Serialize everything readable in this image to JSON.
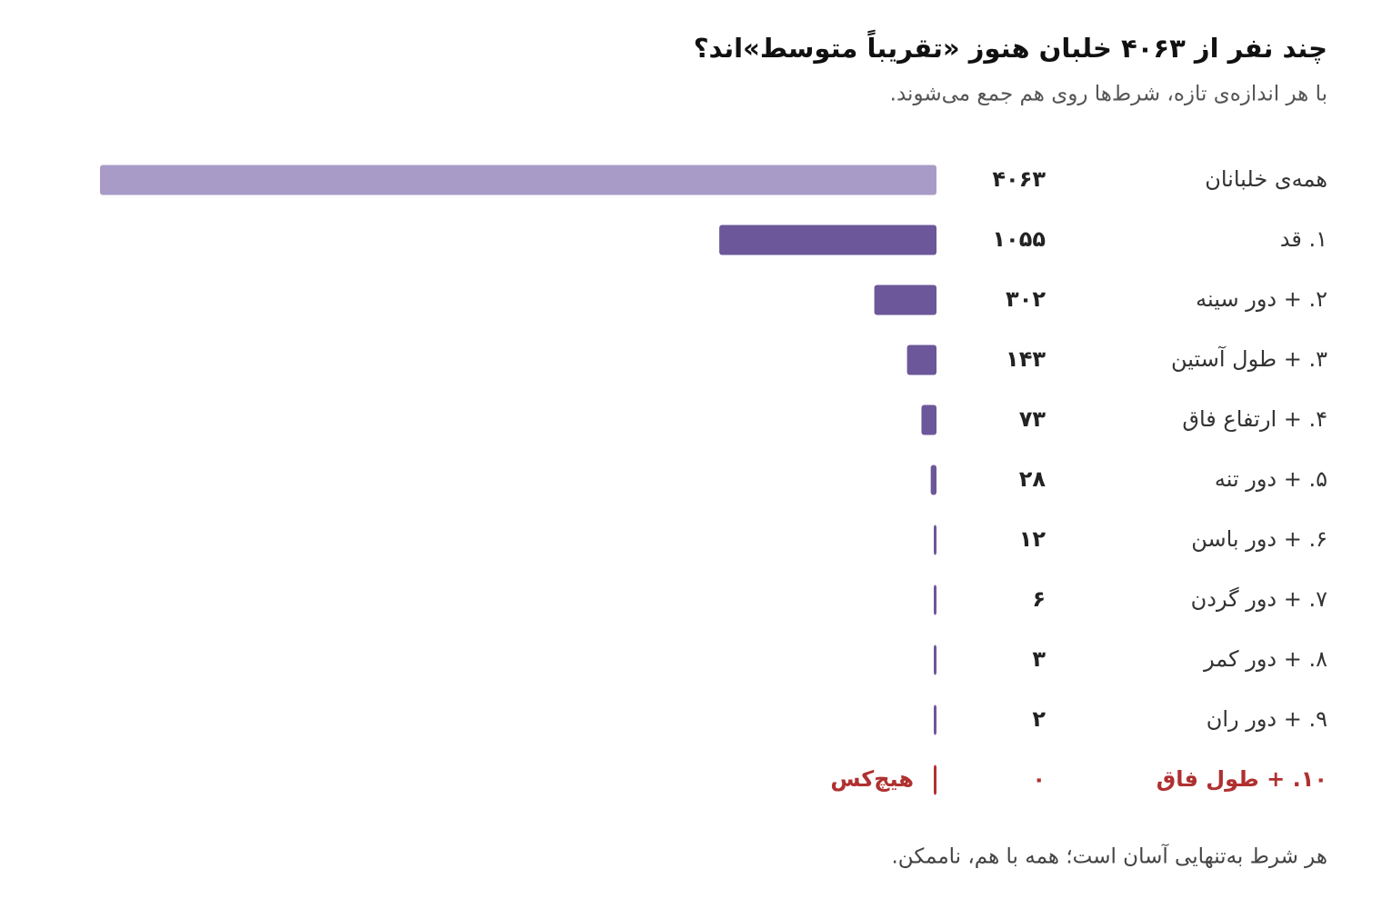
{
  "chart_data": {
    "type": "bar",
    "title": "چند نفر از ۴۰۶۳ خلبان هنوز «تقریباً متوسط»اند؟",
    "subtitle": "با هر اندازه‌ی تازه، شرط‌ها روی هم جمع می‌شوند.",
    "categories": [
      "همه‌ی خلبانان",
      "۱. قد",
      "۲. + دور سینه",
      "۳. + طول آستین",
      "۴. + ارتفاع فاق",
      "۵. + دور تنه",
      "۶. + دور باسن",
      "۷. + دور گردن",
      "۸. + دور کمر",
      "۹. + دور ران",
      "۱۰. + طول فاق"
    ],
    "values": [
      4063,
      1055,
      302,
      143,
      73,
      28,
      12,
      6,
      3,
      2,
      0
    ],
    "value_labels": [
      "۴۰۶۳",
      "۱۰۵۵",
      "۳۰۲",
      "۱۴۳",
      "۷۳",
      "۲۸",
      "۱۲",
      "۶",
      "۳",
      "۲",
      "۰"
    ],
    "colors": [
      "#a89bc8",
      "#6b5799",
      "#6b5799",
      "#6b5799",
      "#6b5799",
      "#6b5799",
      "#6b5799",
      "#6b5799",
      "#6b5799",
      "#6b5799",
      "#b03030"
    ],
    "zero_note": "هیچ‌کس",
    "annotation": "هر شرط به‌تنهایی آسان است؛ همه با هم، ناممکن.",
    "xlim": [
      0,
      4063
    ]
  }
}
